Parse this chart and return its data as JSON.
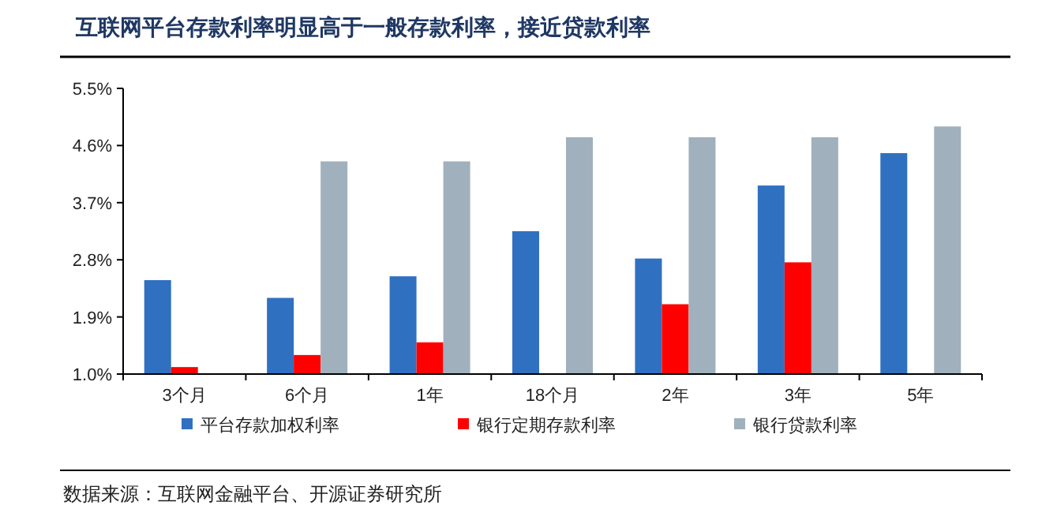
{
  "chart_data": {
    "type": "bar",
    "title": "互联网平台存款利率明显高于一般存款利率，接近贷款利率",
    "categories": [
      "3个月",
      "6个月",
      "1年",
      "18个月",
      "2年",
      "3年",
      "5年"
    ],
    "series": [
      {
        "name": "平台存款加权利率",
        "color": "#3070c0",
        "values": [
          2.48,
          2.2,
          2.54,
          3.25,
          2.82,
          3.97,
          4.48
        ]
      },
      {
        "name": "银行定期存款利率",
        "color": "#ff0000",
        "values": [
          1.11,
          1.3,
          1.5,
          null,
          2.1,
          2.76,
          null
        ]
      },
      {
        "name": "银行贷款利率",
        "color": "#a0b0bc",
        "values": [
          null,
          4.35,
          4.35,
          4.73,
          4.73,
          4.73,
          4.9
        ]
      }
    ],
    "ylim": [
      1.0,
      5.5
    ],
    "yticks": [
      {
        "value": 1.0,
        "label": "1.0%"
      },
      {
        "value": 1.9,
        "label": "1.9%"
      },
      {
        "value": 2.8,
        "label": "2.8%"
      },
      {
        "value": 3.7,
        "label": "3.7%"
      },
      {
        "value": 4.6,
        "label": "4.6%"
      },
      {
        "value": 5.5,
        "label": "5.5%"
      }
    ],
    "grid": false,
    "legend": "bottom",
    "annotations": [
      "数据来源：互联网金融平台、开源证券研究所"
    ]
  }
}
